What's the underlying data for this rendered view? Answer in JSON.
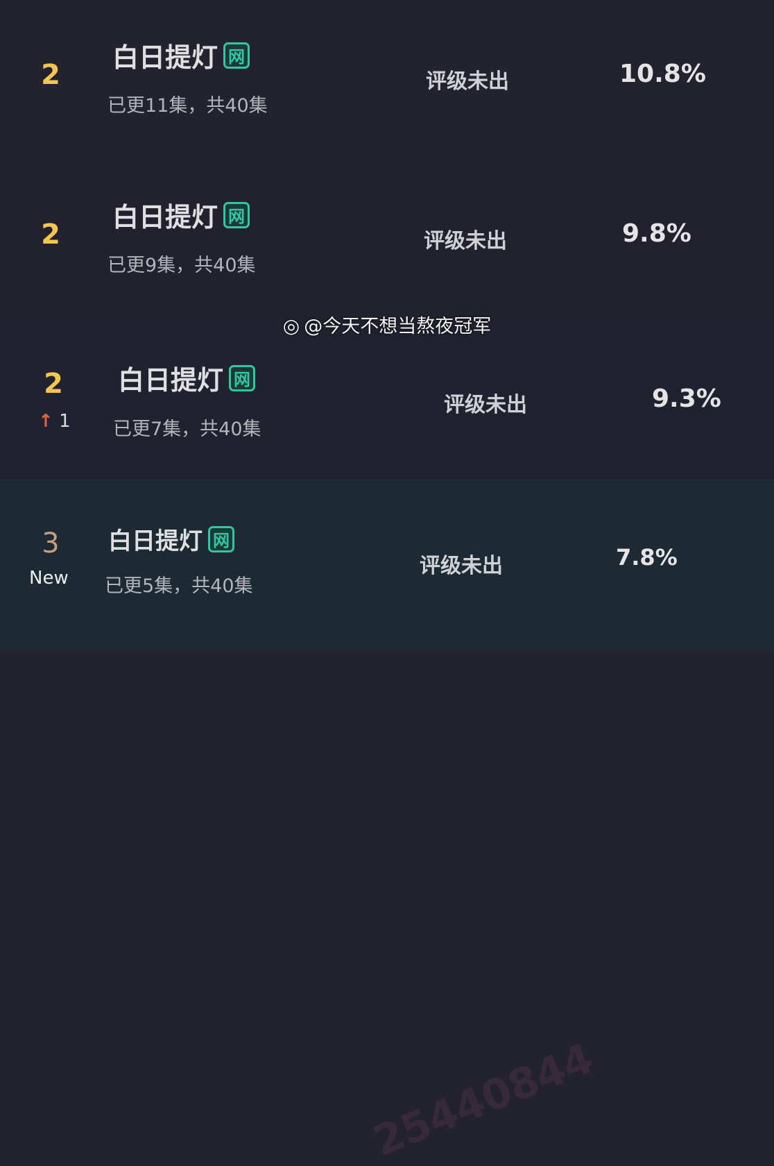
{
  "rows": [
    {
      "rank": "2",
      "title": "白日提灯",
      "badge": "网",
      "episodes": "已更11集，共40集",
      "rating": "评级未出",
      "percent": "10.8%"
    },
    {
      "rank": "2",
      "title": "白日提灯",
      "badge": "网",
      "episodes": "已更9集，共40集",
      "rating": "评级未出",
      "percent": "9.8%"
    },
    {
      "rank": "2",
      "change": "1",
      "title": "白日提灯",
      "badge": "网",
      "episodes": "已更7集，共40集",
      "rating": "评级未出",
      "percent": "9.3%"
    },
    {
      "rank": "3",
      "status": "New",
      "title": "白日提灯",
      "badge": "网",
      "episodes": "已更5集，共40集",
      "rating": "评级未出",
      "percent": "7.8%"
    }
  ],
  "watermark": {
    "handle": "@今天不想当熬夜冠军",
    "icon": "weibo-icon",
    "bg_mark": "25440844"
  },
  "colors": {
    "rank": "#f2c64f",
    "badge": "#33c6a2",
    "up_arrow": "#e4623e"
  }
}
